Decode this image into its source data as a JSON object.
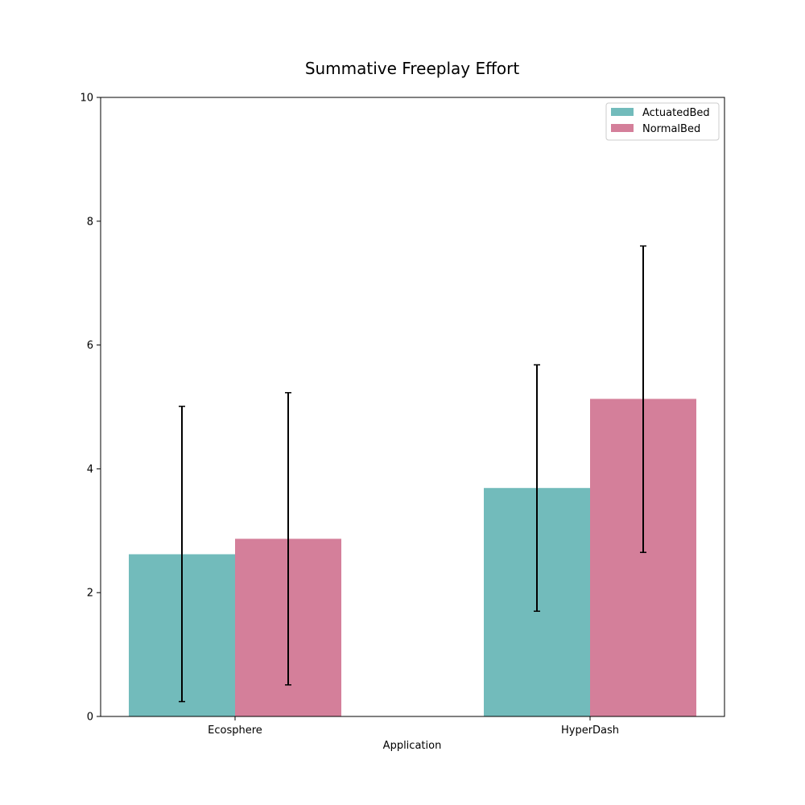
{
  "chart_data": {
    "type": "bar",
    "title": "Summative Freeplay Effort",
    "xlabel": "Application",
    "ylabel": "",
    "categories": [
      "Ecosphere",
      "HyperDash"
    ],
    "ylim": [
      0,
      10
    ],
    "yticks": [
      0,
      2,
      4,
      6,
      8,
      10
    ],
    "series": [
      {
        "name": "ActuatedBed",
        "color": "#72bbbb",
        "values": [
          2.62,
          3.69
        ],
        "error_low": [
          0.24,
          1.7
        ],
        "error_high": [
          5.01,
          5.68
        ]
      },
      {
        "name": "NormalBed",
        "color": "#d47f9a",
        "values": [
          2.87,
          5.13
        ],
        "error_low": [
          0.51,
          2.65
        ],
        "error_high": [
          5.23,
          7.6
        ]
      }
    ],
    "error_bar_color": "#000000",
    "legend_position": "top-right",
    "grid": false
  }
}
